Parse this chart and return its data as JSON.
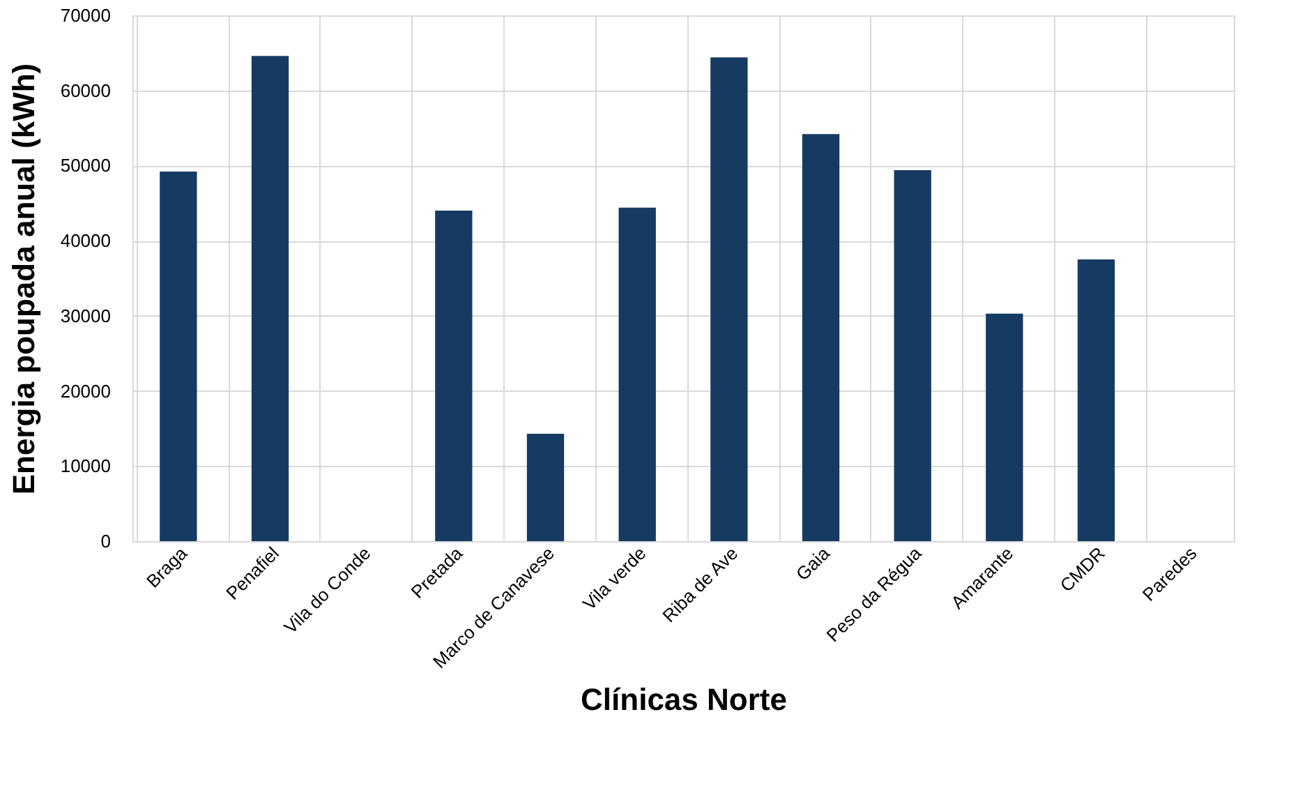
{
  "chart_data": {
    "type": "bar",
    "xlabel": "Clínicas Norte",
    "ylabel": "Energia poupada anual (kWh)",
    "categories": [
      "Braga",
      "Penafiel",
      "Vila do Conde",
      "Pretada",
      "Marco de Canavese",
      "Vila verde",
      "Riba de Ave",
      "Gaia",
      "Peso da Régua",
      "Amarante",
      "CMDR",
      "Paredes"
    ],
    "values": [
      49200,
      64600,
      null,
      44000,
      14300,
      44400,
      64400,
      54200,
      49400,
      30300,
      37500,
      null
    ],
    "color": "#163b63",
    "ylim": [
      0,
      70000
    ],
    "yticks": [
      0,
      10000,
      20000,
      30000,
      40000,
      50000,
      60000,
      70000
    ],
    "grid": true
  }
}
